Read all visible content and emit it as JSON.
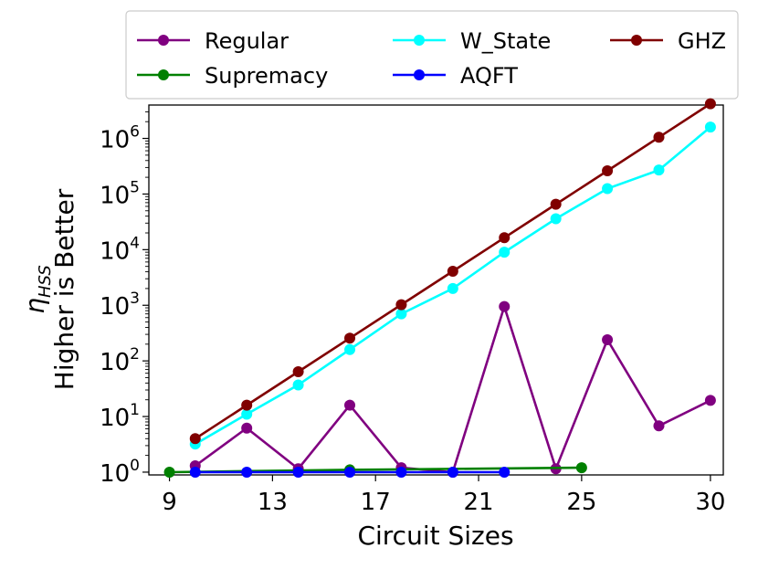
{
  "chart_data": {
    "type": "line",
    "yscale": "log",
    "xlabel": "Circuit Sizes",
    "ylabel_line1": "η",
    "ylabel_subscript": "HSS",
    "ylabel_line2": "Higher is Better",
    "xlim": [
      8.2,
      30.5
    ],
    "ylim_log10": [
      -0.05,
      6.6
    ],
    "x_ticks": [
      9,
      13,
      17,
      21,
      25,
      30
    ],
    "x_tick_labels": [
      "9",
      "13",
      "17",
      "21",
      "25",
      "30"
    ],
    "y_ticks": [
      {
        "exp": 0,
        "base": "10",
        "sup": "0"
      },
      {
        "exp": 1,
        "base": "10",
        "sup": "1"
      },
      {
        "exp": 2,
        "base": "10",
        "sup": "2"
      },
      {
        "exp": 3,
        "base": "10",
        "sup": "3"
      },
      {
        "exp": 4,
        "base": "10",
        "sup": "4"
      },
      {
        "exp": 5,
        "base": "10",
        "sup": "5"
      },
      {
        "exp": 6,
        "base": "10",
        "sup": "6"
      }
    ],
    "legend_position": "top",
    "series": [
      {
        "name": "Regular",
        "color": "#800080",
        "x": [
          10,
          12,
          14,
          16,
          18,
          20,
          22,
          24,
          26,
          28,
          30
        ],
        "y": [
          1.3,
          6.2,
          1.15,
          16,
          1.2,
          1.0,
          950,
          1.15,
          240,
          6.8,
          19.5
        ]
      },
      {
        "name": "Supremacy",
        "color": "#008000",
        "x": [
          9,
          16,
          25
        ],
        "y": [
          1.0,
          1.1,
          1.2
        ]
      },
      {
        "name": "W_State",
        "color": "#00ffff",
        "x": [
          10,
          12,
          14,
          16,
          18,
          20,
          22,
          24,
          26,
          28,
          30
        ],
        "y": [
          3.2,
          11,
          37,
          160,
          700,
          2000,
          9000,
          36000,
          125000,
          270000,
          1600000
        ]
      },
      {
        "name": "AQFT",
        "color": "#0000ff",
        "x": [
          10,
          12,
          14,
          16,
          18,
          20,
          22
        ],
        "y": [
          1.0,
          1.0,
          1.0,
          1.0,
          1.0,
          1.0,
          1.0
        ]
      },
      {
        "name": "GHZ",
        "color": "#800000",
        "x": [
          10,
          12,
          14,
          16,
          18,
          20,
          22,
          24,
          26,
          28,
          30
        ],
        "y": [
          4,
          16,
          64,
          256,
          1024,
          4096,
          16384,
          65536,
          262144,
          1048576,
          4194304
        ]
      }
    ]
  }
}
